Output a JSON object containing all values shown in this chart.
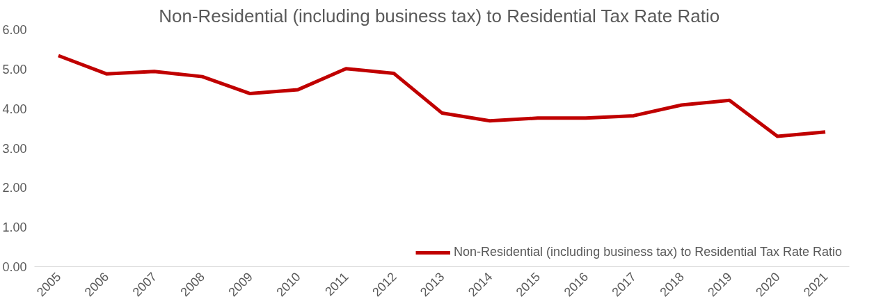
{
  "chart_data": {
    "type": "line",
    "title": "Non-Residential (including business tax)  to Residential Tax Rate Ratio",
    "categories": [
      "2005",
      "2006",
      "2007",
      "2008",
      "2009",
      "2010",
      "2011",
      "2012",
      "2013",
      "2014",
      "2015",
      "2016",
      "2017",
      "2018",
      "2019",
      "2020",
      "2021"
    ],
    "series": [
      {
        "name": "Non-Residential (including business tax) to Residential Tax Rate Ratio",
        "color": "#c00000",
        "values": [
          5.34,
          4.88,
          4.94,
          4.81,
          4.38,
          4.48,
          5.01,
          4.89,
          3.89,
          3.69,
          3.76,
          3.76,
          3.82,
          4.09,
          4.21,
          3.3,
          3.41
        ]
      }
    ],
    "ylim": [
      0,
      6
    ],
    "yticks": [
      {
        "value": 0,
        "label": "0.00"
      },
      {
        "value": 1,
        "label": "1.00"
      },
      {
        "value": 2,
        "label": "2.00"
      },
      {
        "value": 3,
        "label": "3.00"
      },
      {
        "value": 4,
        "label": "4.00"
      },
      {
        "value": 5,
        "label": "5.00"
      },
      {
        "value": 6,
        "label": "6.00"
      }
    ],
    "grid": false,
    "legend": "bottom right",
    "marker": "none",
    "line_style": "solid"
  }
}
